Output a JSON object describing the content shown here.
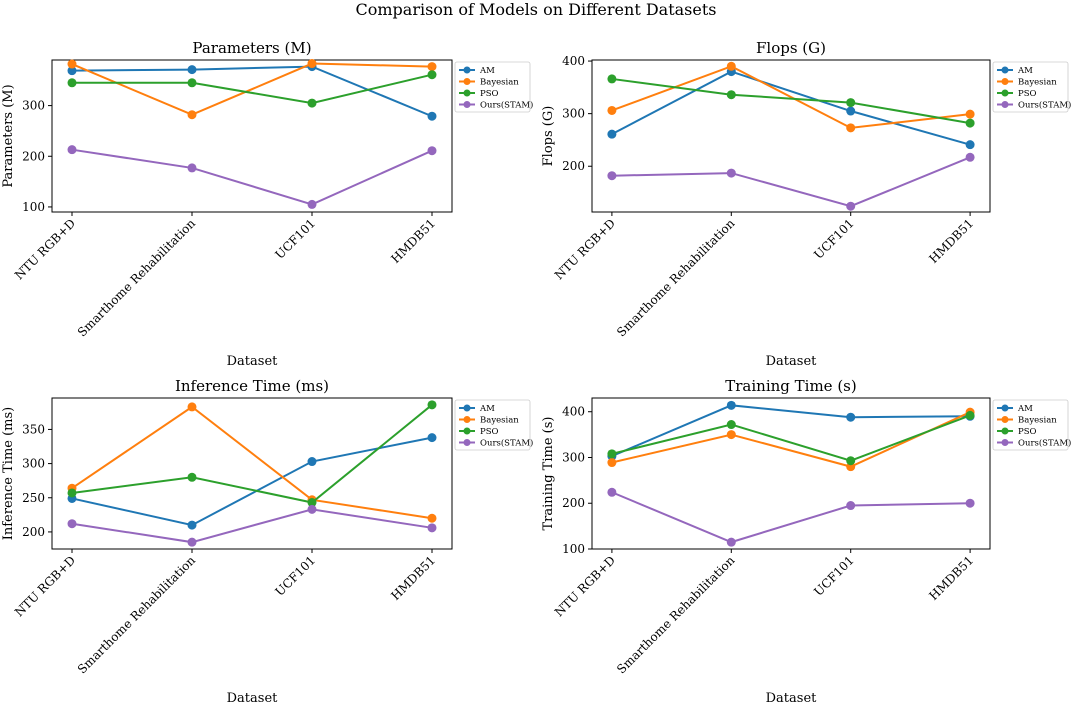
{
  "figure": {
    "title": "Comparison of Models on Different Datasets"
  },
  "chart_data": [
    {
      "type": "line",
      "title": "Parameters (M)",
      "xlabel": "Dataset",
      "ylabel": "Parameters (M)",
      "categories": [
        "NTU RGB+D",
        "Smarthome Rehabilitation",
        "UCF101",
        "HMDB51"
      ],
      "ylim": [
        90,
        390
      ],
      "yticks": [
        100,
        200,
        300
      ],
      "series": [
        {
          "name": "AM",
          "color": "#1f77b4",
          "values": [
            369,
            371,
            377,
            279
          ]
        },
        {
          "name": "Bayesian",
          "color": "#ff7f0e",
          "values": [
            382,
            282,
            383,
            377
          ]
        },
        {
          "name": "PSO",
          "color": "#2ca02c",
          "values": [
            345,
            345,
            305,
            361
          ]
        },
        {
          "name": "Ours(STAM)",
          "color": "#9467bd",
          "values": [
            213,
            177,
            105,
            211
          ]
        }
      ]
    },
    {
      "type": "line",
      "title": "Flops (G)",
      "xlabel": "Dataset",
      "ylabel": "Flops (G)",
      "categories": [
        "NTU RGB+D",
        "Smarthome Rehabilitation",
        "UCF101",
        "HMDB51"
      ],
      "ylim": [
        113,
        402
      ],
      "yticks": [
        200,
        300,
        400
      ],
      "series": [
        {
          "name": "AM",
          "color": "#1f77b4",
          "values": [
            261,
            380,
            305,
            241
          ]
        },
        {
          "name": "Bayesian",
          "color": "#ff7f0e",
          "values": [
            306,
            390,
            273,
            299
          ]
        },
        {
          "name": "PSO",
          "color": "#2ca02c",
          "values": [
            366,
            336,
            321,
            282
          ]
        },
        {
          "name": "Ours(STAM)",
          "color": "#9467bd",
          "values": [
            182,
            187,
            124,
            217
          ]
        }
      ]
    },
    {
      "type": "line",
      "title": "Inference Time (ms)",
      "xlabel": "Dataset",
      "ylabel": "Inference Time (ms)",
      "categories": [
        "NTU RGB+D",
        "Smarthome Rehabilitation",
        "UCF101",
        "HMDB51"
      ],
      "ylim": [
        175,
        396
      ],
      "yticks": [
        200,
        250,
        300,
        350
      ],
      "series": [
        {
          "name": "AM",
          "color": "#1f77b4",
          "values": [
            249,
            210,
            303,
            338
          ]
        },
        {
          "name": "Bayesian",
          "color": "#ff7f0e",
          "values": [
            264,
            383,
            247,
            220
          ]
        },
        {
          "name": "PSO",
          "color": "#2ca02c",
          "values": [
            257,
            280,
            243,
            386
          ]
        },
        {
          "name": "Ours(STAM)",
          "color": "#9467bd",
          "values": [
            212,
            185,
            233,
            206
          ]
        }
      ]
    },
    {
      "type": "line",
      "title": "Training Time (s)",
      "xlabel": "Dataset",
      "ylabel": "Training Time (s)",
      "categories": [
        "NTU RGB+D",
        "Smarthome Rehabilitation",
        "UCF101",
        "HMDB51"
      ],
      "ylim": [
        100,
        430
      ],
      "yticks": [
        100,
        200,
        300,
        400
      ],
      "series": [
        {
          "name": "AM",
          "color": "#1f77b4",
          "values": [
            303,
            414,
            388,
            390
          ]
        },
        {
          "name": "Bayesian",
          "color": "#ff7f0e",
          "values": [
            289,
            350,
            280,
            399
          ]
        },
        {
          "name": "PSO",
          "color": "#2ca02c",
          "values": [
            308,
            372,
            293,
            392
          ]
        },
        {
          "name": "Ours(STAM)",
          "color": "#9467bd",
          "values": [
            224,
            115,
            195,
            200
          ]
        }
      ]
    }
  ]
}
